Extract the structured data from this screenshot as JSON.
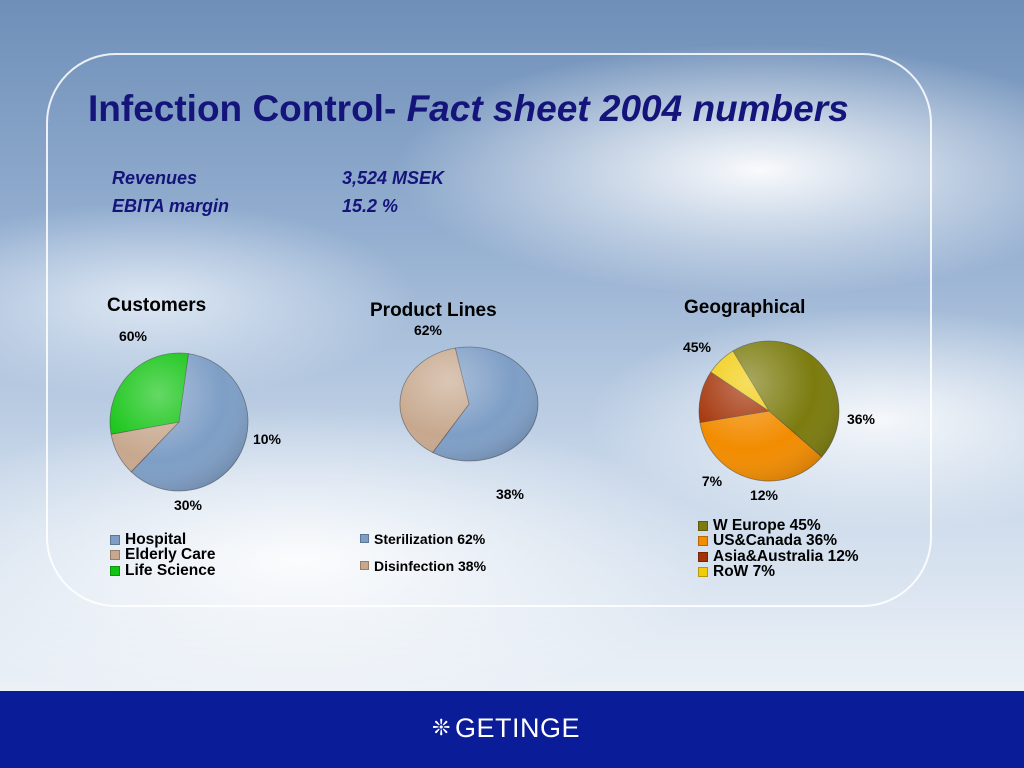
{
  "title": {
    "main": "Infection Control-",
    "italic": "Fact sheet 2004 numbers"
  },
  "kpis": [
    {
      "label": "Revenues",
      "value": "3,524 MSEK"
    },
    {
      "label": "EBITA margin",
      "value": "15.2 %"
    }
  ],
  "chart_data": [
    {
      "type": "pie",
      "title": "Customers",
      "categories": [
        "Hospital",
        "Elderly Care",
        "Life Science"
      ],
      "values": [
        60,
        10,
        30
      ],
      "data_labels": [
        "60%",
        "10%",
        "30%"
      ],
      "legend_labels": [
        "Hospital",
        "Elderly Care",
        "Life Science"
      ],
      "colors": [
        "#7e9ec6",
        "#c7a88e",
        "#12c412"
      ],
      "legend_placement": "bottom"
    },
    {
      "type": "pie",
      "title": "Product Lines",
      "categories": [
        "Sterilization",
        "Disinfection"
      ],
      "values": [
        62,
        38
      ],
      "data_labels": [
        "62%",
        "38%"
      ],
      "legend_labels": [
        "Sterilization 62%",
        "Disinfection 38%"
      ],
      "colors": [
        "#7e9ec6",
        "#c7a88e"
      ],
      "legend_placement": "bottom"
    },
    {
      "type": "pie",
      "title": "Geographical",
      "categories": [
        "W Europe",
        "US&Canada",
        "Asia&Australia",
        "RoW"
      ],
      "values": [
        45,
        36,
        12,
        7
      ],
      "data_labels": [
        "45%",
        "36%",
        "12%",
        "7%"
      ],
      "legend_labels": [
        "W Europe 45%",
        "US&Canada 36%",
        "Asia&Australia 12%",
        "RoW 7%"
      ],
      "colors": [
        "#7b7b0e",
        "#f28c00",
        "#a33207",
        "#f1cc0c"
      ],
      "legend_placement": "bottom"
    }
  ],
  "footer": {
    "logo_text": "GETINGE",
    "logo_icon": "getinge-star-icon"
  }
}
